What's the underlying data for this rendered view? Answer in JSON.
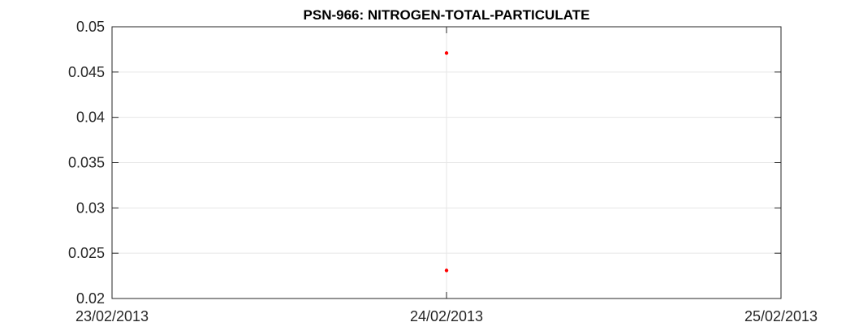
{
  "chart_data": {
    "type": "scatter",
    "title": "PSN-966: NITROGEN-TOTAL-PARTICULATE",
    "xlabel": "",
    "ylabel": "",
    "x_tick_labels": [
      "23/02/2013",
      "24/02/2013",
      "25/02/2013"
    ],
    "xlim": [
      "23/02/2013",
      "25/02/2013"
    ],
    "y_tick_labels": [
      "0.02",
      "0.025",
      "0.03",
      "0.035",
      "0.04",
      "0.045",
      "0.05"
    ],
    "ylim": [
      0.02,
      0.05
    ],
    "grid": true,
    "marker_color": "#ff0000",
    "series": [
      {
        "points": [
          {
            "x": "24/02/2013",
            "y": 0.0471
          },
          {
            "x": "24/02/2013",
            "y": 0.0231
          }
        ]
      }
    ]
  }
}
